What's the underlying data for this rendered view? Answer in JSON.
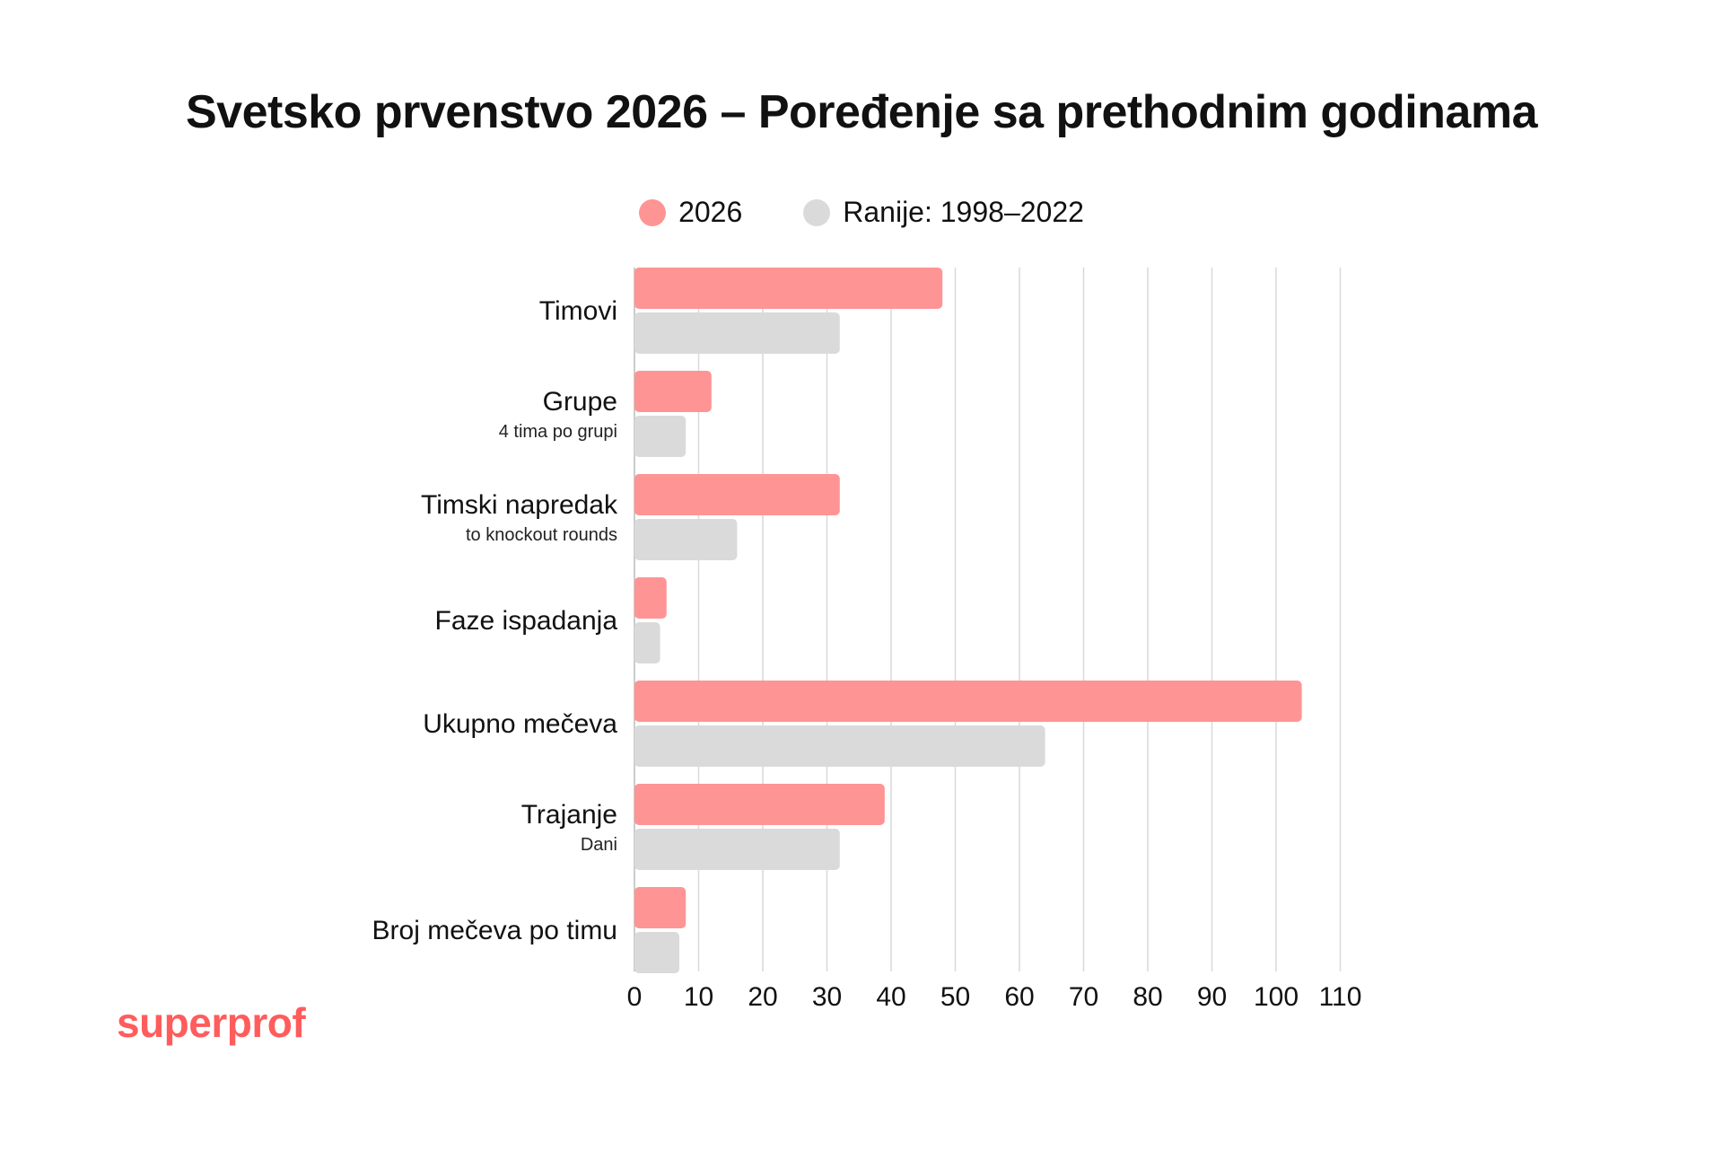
{
  "chart_data": {
    "type": "bar",
    "orientation": "horizontal",
    "title": "Svetsko prvenstvo 2026 – Poređenje sa prethodnim godinama",
    "categories": [
      "Timovi",
      "Grupe",
      "Timski napredak",
      "Faze ispadanja",
      "Ukupno mečeva",
      "Trajanje",
      "Broj mečeva po timu"
    ],
    "category_sublabels": [
      "",
      "4 tima po grupi",
      "to knockout rounds",
      "",
      "",
      "Dani",
      ""
    ],
    "series": [
      {
        "name": "2026",
        "color": "#ff9494",
        "values": [
          48,
          12,
          32,
          5,
          104,
          39,
          8
        ]
      },
      {
        "name": "Ranije: 1998–2022",
        "color": "#dadada",
        "values": [
          32,
          8,
          16,
          4,
          64,
          32,
          7
        ]
      }
    ],
    "xlim": [
      0,
      110
    ],
    "xticks": [
      0,
      10,
      20,
      30,
      40,
      50,
      60,
      70,
      80,
      90,
      100,
      110
    ],
    "grid": "vertical",
    "legend_position": "top"
  },
  "brand": {
    "text": "superprof",
    "color": "#ff5c5c"
  },
  "colors": {
    "gridline": "#d9d9d9",
    "axis": "#bbbbbb"
  }
}
